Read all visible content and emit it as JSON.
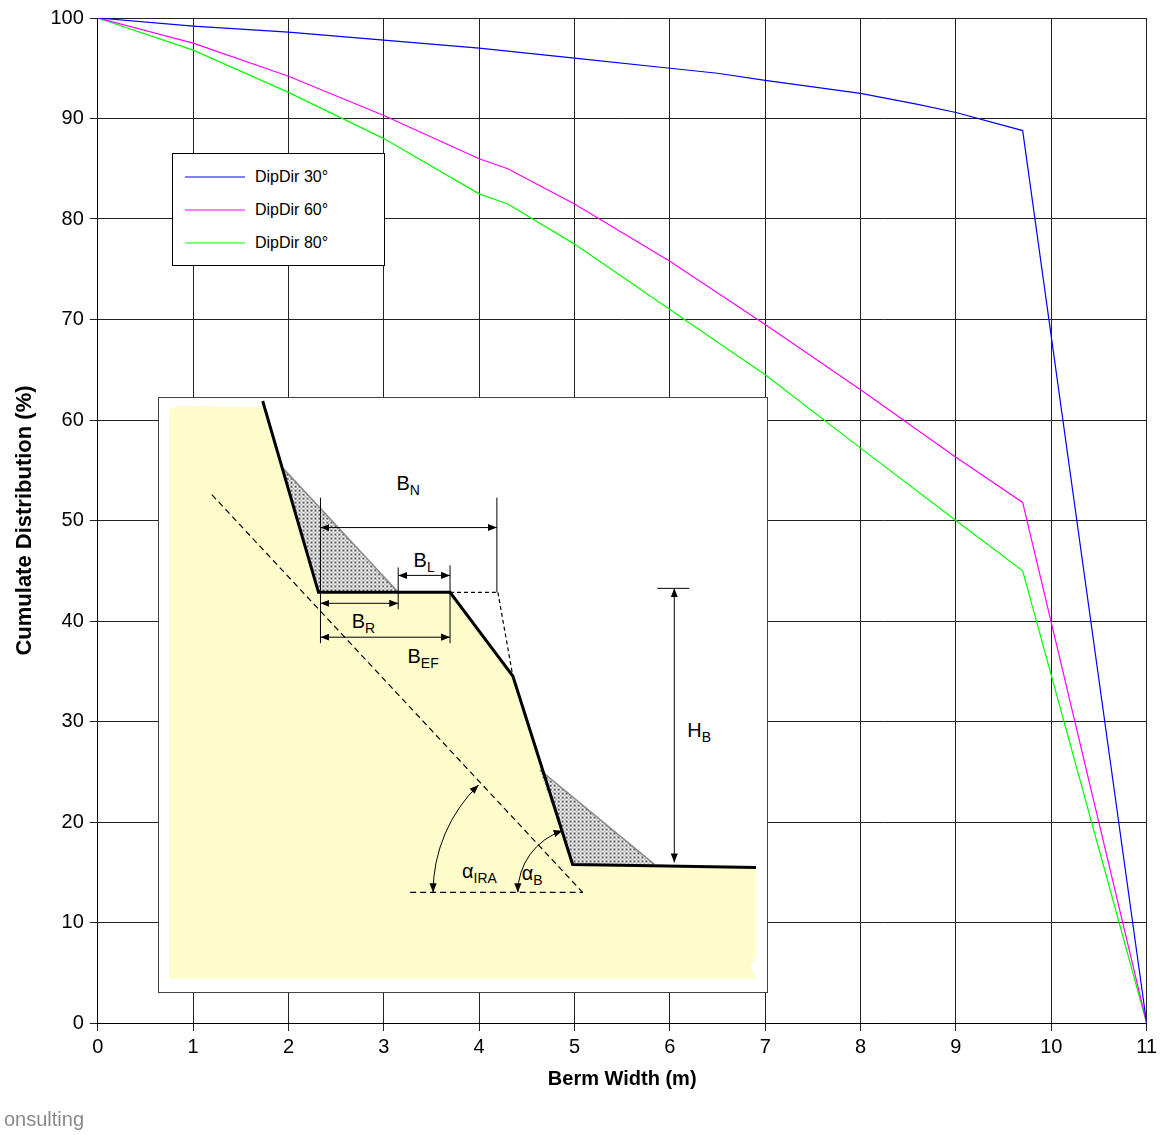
{
  "chart_data": {
    "type": "line",
    "x_label": "Berm Width (m)",
    "y_label": "Cumulate Distribution (%)",
    "xlim": [
      0,
      11
    ],
    "xticks": [
      0,
      1,
      2,
      3,
      4,
      5,
      6,
      7,
      8,
      9,
      10,
      11
    ],
    "ylim": [
      0,
      100
    ],
    "yticks": [
      0,
      10,
      20,
      30,
      40,
      50,
      60,
      70,
      80,
      90,
      100
    ],
    "grid": true,
    "legend": "upper left",
    "series": [
      {
        "name": "DipDir 30°",
        "color": "#0000ff",
        "x": [
          0,
          1,
          2,
          3,
          4,
          5,
          6,
          6.5,
          7,
          8,
          8.6,
          9,
          9.7,
          11
        ],
        "values": [
          100,
          99.2,
          98.6,
          97.8,
          97,
          96,
          95,
          94.5,
          93.8,
          92.5,
          91.4,
          90.6,
          88.8,
          0
        ]
      },
      {
        "name": "DipDir 60°",
        "color": "#ff00ff",
        "x": [
          0,
          1,
          2,
          3,
          4,
          4.3,
          5,
          6,
          7,
          8,
          9,
          9.7,
          11
        ],
        "values": [
          100,
          97.5,
          94.2,
          90.3,
          86,
          85,
          81.5,
          75.8,
          69.5,
          63,
          56.3,
          51.8,
          0
        ]
      },
      {
        "name": "DipDir 80°",
        "color": "#00ff00",
        "x": [
          0,
          1,
          2,
          3,
          4,
          4.3,
          5,
          6,
          7,
          8,
          9,
          9.7,
          11
        ],
        "values": [
          100,
          96.8,
          92.6,
          88,
          82.5,
          81.5,
          77.5,
          71,
          64.5,
          57.2,
          50,
          45,
          0
        ]
      }
    ]
  },
  "inset": {
    "labels": {
      "bn": {
        "text": "B",
        "sub": "N"
      },
      "bl": {
        "text": "B",
        "sub": "L"
      },
      "br": {
        "text": "B",
        "sub": "R"
      },
      "bef": {
        "text": "B",
        "sub": "EF"
      },
      "hb": {
        "text": "H",
        "sub": "B"
      },
      "aira": {
        "text": "α",
        "sub": "IRA"
      },
      "ab": {
        "text": "α",
        "sub": "B"
      }
    }
  },
  "footer": "onsulting"
}
